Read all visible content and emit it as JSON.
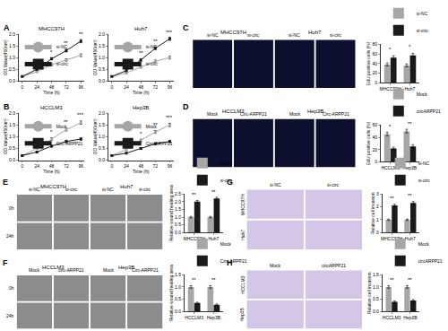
{
  "chart_data": [
    {
      "type": "line",
      "panel": "A",
      "title": "MHCC97H",
      "x_label": "Time (h)",
      "y_label": "OD Value(450nm)",
      "x": [
        0,
        24,
        48,
        72,
        96
      ],
      "xlim": [
        -6,
        102
      ],
      "xticks": [
        0,
        24,
        48,
        72,
        96
      ],
      "ylim": [
        0,
        2
      ],
      "yticks": [
        {
          "value": 0,
          "label": "0.0"
        },
        {
          "value": 0.5,
          "label": "0.5"
        },
        {
          "value": 1,
          "label": "1.0"
        },
        {
          "value": 1.5,
          "label": "1.5"
        },
        {
          "value": 2,
          "label": "2.0"
        }
      ],
      "series": [
        {
          "name": "si-NC",
          "color": "#a6a6a6",
          "marker": "circle",
          "values": [
            0.2,
            0.4,
            0.7,
            0.9,
            1.1
          ],
          "errors": [
            0.02,
            0.03,
            0.05,
            0.05,
            0.06
          ]
        },
        {
          "name": "si-circ",
          "color": "#1a1a1a",
          "marker": "square",
          "values": [
            0.2,
            0.5,
            0.95,
            1.3,
            1.7
          ],
          "errors": [
            0.02,
            0.04,
            0.05,
            0.06,
            0.07
          ]
        }
      ],
      "annotations": [
        {
          "x": 48,
          "y": 1.05,
          "text": "*"
        },
        {
          "x": 72,
          "y": 1.42,
          "text": "**"
        },
        {
          "x": 96,
          "y": 1.82,
          "text": "**"
        }
      ],
      "legend": "upper left",
      "grid": false
    },
    {
      "type": "line",
      "title": "Huh7",
      "x_label": "Time (h)",
      "y_label": "OD Value(450nm)",
      "x": [
        0,
        24,
        48,
        72,
        96
      ],
      "xlim": [
        -6,
        102
      ],
      "xticks": [
        0,
        24,
        48,
        72,
        96
      ],
      "ylim": [
        0,
        2
      ],
      "yticks": [
        {
          "value": 0,
          "label": "0.0"
        },
        {
          "value": 0.5,
          "label": "0.5"
        },
        {
          "value": 1,
          "label": "1.0"
        },
        {
          "value": 1.5,
          "label": "1.5"
        },
        {
          "value": 2,
          "label": "2.0"
        }
      ],
      "series": [
        {
          "name": "si-NC",
          "color": "#a6a6a6",
          "marker": "circle",
          "values": [
            0.2,
            0.35,
            0.6,
            0.85,
            1.0
          ],
          "errors": [
            0.02,
            0.03,
            0.04,
            0.05,
            0.06
          ]
        },
        {
          "name": "si-circ",
          "color": "#1a1a1a",
          "marker": "square",
          "values": [
            0.2,
            0.45,
            0.9,
            1.4,
            1.8
          ],
          "errors": [
            0.02,
            0.04,
            0.05,
            0.06,
            0.07
          ]
        }
      ],
      "annotations": [
        {
          "x": 48,
          "y": 1.0,
          "text": "**"
        },
        {
          "x": 72,
          "y": 1.52,
          "text": "**"
        },
        {
          "x": 96,
          "y": 1.9,
          "text": "***"
        }
      ],
      "legend": "upper left",
      "grid": false
    },
    {
      "type": "line",
      "panel": "B",
      "title": "HCCLM3",
      "x_label": "Time (h)",
      "y_label": "OD Value(450nm)",
      "x": [
        0,
        24,
        48,
        72,
        96
      ],
      "xlim": [
        -6,
        102
      ],
      "xticks": [
        0,
        24,
        48,
        72,
        96
      ],
      "ylim": [
        0,
        2
      ],
      "yticks": [
        {
          "value": 0,
          "label": "0.0"
        },
        {
          "value": 0.5,
          "label": "0.5"
        },
        {
          "value": 1,
          "label": "1.0"
        },
        {
          "value": 1.5,
          "label": "1.5"
        },
        {
          "value": 2,
          "label": "2.0"
        }
      ],
      "series": [
        {
          "name": "Mock",
          "color": "#a6a6a6",
          "marker": "circle",
          "values": [
            0.2,
            0.5,
            0.9,
            1.3,
            1.6
          ],
          "errors": [
            0.02,
            0.04,
            0.05,
            0.06,
            0.07
          ]
        },
        {
          "name": "Circ-ARPP21",
          "color": "#1a1a1a",
          "marker": "square",
          "values": [
            0.2,
            0.35,
            0.6,
            0.8,
            0.9
          ],
          "errors": [
            0.02,
            0.03,
            0.04,
            0.05,
            0.05
          ]
        }
      ],
      "annotations": [
        {
          "x": 48,
          "y": 1.0,
          "text": "*"
        },
        {
          "x": 72,
          "y": 1.42,
          "text": "**"
        },
        {
          "x": 96,
          "y": 1.72,
          "text": "***"
        }
      ],
      "legend": "upper left",
      "grid": false
    },
    {
      "type": "line",
      "title": "Hep3B",
      "x_label": "Time (h)",
      "y_label": "OD Value(450nm)",
      "x": [
        0,
        24,
        48,
        72,
        96
      ],
      "xlim": [
        -6,
        102
      ],
      "xticks": [
        0,
        24,
        48,
        72,
        96
      ],
      "ylim": [
        0,
        2
      ],
      "yticks": [
        {
          "value": 0,
          "label": "0.0"
        },
        {
          "value": 0.5,
          "label": "0.5"
        },
        {
          "value": 1,
          "label": "1.0"
        },
        {
          "value": 1.5,
          "label": "1.5"
        },
        {
          "value": 2,
          "label": "2.0"
        }
      ],
      "series": [
        {
          "name": "Mock",
          "color": "#a6a6a6",
          "marker": "circle",
          "values": [
            0.2,
            0.45,
            0.85,
            1.2,
            1.5
          ],
          "errors": [
            0.02,
            0.04,
            0.05,
            0.06,
            0.07
          ]
        },
        {
          "name": "Circ-ARPP21",
          "color": "#1a1a1a",
          "marker": "square",
          "values": [
            0.2,
            0.3,
            0.5,
            0.7,
            0.8
          ],
          "errors": [
            0.02,
            0.03,
            0.04,
            0.05,
            0.05
          ]
        }
      ],
      "annotations": [
        {
          "x": 48,
          "y": 0.95,
          "text": "*"
        },
        {
          "x": 72,
          "y": 1.32,
          "text": "**"
        },
        {
          "x": 96,
          "y": 1.62,
          "text": "***"
        }
      ],
      "legend": "upper left",
      "grid": false
    },
    {
      "type": "bar",
      "y_label": "EdU positive cells (%)",
      "categories": [
        "MHCC97H",
        "Huh7"
      ],
      "ylim": [
        0,
        80
      ],
      "yticks": [
        0,
        20,
        40,
        60,
        80
      ],
      "series": [
        {
          "name": "si-NC",
          "color": "#a6a6a6",
          "values": [
            38,
            36
          ],
          "errors": [
            3,
            3
          ]
        },
        {
          "name": "si-circ",
          "color": "#1a1a1a",
          "values": [
            52,
            57
          ],
          "errors": [
            4,
            4
          ]
        }
      ],
      "annotations": [
        {
          "category": "MHCC97H",
          "y": 60,
          "text": "*"
        },
        {
          "category": "Huh7",
          "y": 65,
          "text": "*"
        }
      ],
      "legend": "top",
      "grid": false
    },
    {
      "type": "bar",
      "y_label": "EdU positive cells (%)",
      "categories": [
        "HCCLM3",
        "Hep3B"
      ],
      "ylim": [
        0,
        60
      ],
      "yticks": [
        0,
        20,
        40,
        60
      ],
      "series": [
        {
          "name": "Mock",
          "color": "#a6a6a6",
          "values": [
            45,
            50
          ],
          "errors": [
            3,
            3
          ]
        },
        {
          "name": "circARPP21",
          "color": "#1a1a1a",
          "values": [
            22,
            25
          ],
          "errors": [
            2,
            3
          ]
        }
      ],
      "annotations": [
        {
          "category": "HCCLM3",
          "y": 50,
          "text": "*"
        },
        {
          "category": "Hep3B",
          "y": 55,
          "text": "**"
        }
      ],
      "legend": "top",
      "grid": false
    },
    {
      "type": "bar",
      "y_label": "Relative wound healing area",
      "categories": [
        "MHCC97H",
        "Huh7"
      ],
      "ylim": [
        0,
        2.5
      ],
      "yticks": [
        {
          "value": 0,
          "label": "0.0"
        },
        {
          "value": 0.5,
          "label": "0.5"
        },
        {
          "value": 1,
          "label": "1.0"
        },
        {
          "value": 1.5,
          "label": "1.5"
        },
        {
          "value": 2,
          "label": "2.0"
        },
        {
          "value": 2.5,
          "label": "2.5"
        }
      ],
      "series": [
        {
          "name": "si-NC",
          "color": "#a6a6a6",
          "values": [
            1,
            1
          ],
          "errors": [
            0.05,
            0.05
          ]
        },
        {
          "name": "si-circ",
          "color": "#1a1a1a",
          "values": [
            2.0,
            2.2
          ],
          "errors": [
            0.08,
            0.08
          ]
        }
      ],
      "annotations": [
        {
          "category": "MHCC97H",
          "y": 2.15,
          "text": "**"
        },
        {
          "category": "Huh7",
          "y": 2.32,
          "text": "**"
        }
      ],
      "legend": "top",
      "grid": false
    },
    {
      "type": "bar",
      "y_label": "Relative wound healing area",
      "categories": [
        "HCCLM3",
        "Hep3B"
      ],
      "ylim": [
        0,
        1.5
      ],
      "yticks": [
        {
          "value": 0,
          "label": "0.0"
        },
        {
          "value": 0.5,
          "label": "0.5"
        },
        {
          "value": 1,
          "label": "1.0"
        },
        {
          "value": 1.5,
          "label": "1.5"
        }
      ],
      "series": [
        {
          "name": "Mock",
          "color": "#a6a6a6",
          "values": [
            1,
            1
          ],
          "errors": [
            0.05,
            0.05
          ]
        },
        {
          "name": "Circ-ARPP21",
          "color": "#1a1a1a",
          "values": [
            0.35,
            0.28
          ],
          "errors": [
            0.03,
            0.03
          ]
        }
      ],
      "annotations": [
        {
          "category": "HCCLM3",
          "y": 1.1,
          "text": "**"
        },
        {
          "category": "Hep3B",
          "y": 1.1,
          "text": "**"
        }
      ],
      "legend": "top",
      "grid": false
    },
    {
      "type": "bar",
      "y_label": "Relative cell invasion",
      "categories": [
        "MHCC97H",
        "Huh7"
      ],
      "ylim": [
        0,
        3
      ],
      "yticks": [
        0,
        1,
        2,
        3
      ],
      "series": [
        {
          "name": "si-NC",
          "color": "#a6a6a6",
          "values": [
            1,
            1
          ],
          "errors": [
            0.05,
            0.05
          ]
        },
        {
          "name": "si-circ",
          "color": "#1a1a1a",
          "values": [
            2.1,
            2.3
          ],
          "errors": [
            0.1,
            0.1
          ]
        }
      ],
      "annotations": [
        {
          "category": "MHCC97H",
          "y": 2.3,
          "text": "**"
        },
        {
          "category": "Huh7",
          "y": 2.5,
          "text": "**"
        }
      ],
      "legend": "top",
      "grid": false
    },
    {
      "type": "bar",
      "y_label": "Relative cell invasion",
      "categories": [
        "HCCLM3",
        "Hep3B"
      ],
      "ylim": [
        0,
        1.5
      ],
      "yticks": [
        {
          "value": 0,
          "label": "0.0"
        },
        {
          "value": 0.5,
          "label": "0.5"
        },
        {
          "value": 1,
          "label": "1.0"
        },
        {
          "value": 1.5,
          "label": "1.5"
        }
      ],
      "series": [
        {
          "name": "Mock",
          "color": "#a6a6a6",
          "values": [
            1,
            1
          ],
          "errors": [
            0.05,
            0.05
          ]
        },
        {
          "name": "circARPP21",
          "color": "#1a1a1a",
          "values": [
            0.4,
            0.45
          ],
          "errors": [
            0.03,
            0.04
          ]
        }
      ],
      "annotations": [
        {
          "category": "HCCLM3",
          "y": 1.1,
          "text": "**"
        },
        {
          "category": "Hep3B",
          "y": 1.1,
          "text": "**"
        }
      ],
      "legend": "top",
      "grid": false
    }
  ],
  "image_panels": [
    {
      "panel": "C",
      "groups": [
        "MHCC97H",
        "Huh7"
      ],
      "columns": [
        "si-NC",
        "si-circ",
        "si-NC",
        "si-circ"
      ]
    },
    {
      "panel": "D",
      "groups": [
        "HCCLM3",
        "Hep3B"
      ],
      "columns": [
        "Mock",
        "Circ-ARPP21",
        "Mock",
        "Circ-ARPP21"
      ]
    },
    {
      "panel": "E",
      "groups": [
        "MHCC97H",
        "Huh7"
      ],
      "columns": [
        "si-NC",
        "si-circ",
        "si-NC",
        "si-circ"
      ],
      "rows": [
        "0h",
        "24h"
      ]
    },
    {
      "panel": "F",
      "groups": [
        "HCCLM3",
        "Hep3B"
      ],
      "columns": [
        "Mock",
        "circ-ARPP21",
        "Mock",
        "Circ-ARPP21"
      ],
      "rows": [
        "0h",
        "24h"
      ]
    },
    {
      "panel": "G",
      "columns": [
        "si-NC",
        "si-circ"
      ],
      "rows": [
        "MHCC97H",
        "Huh7"
      ]
    },
    {
      "panel": "H",
      "columns": [
        "Mock",
        "circARPP21"
      ],
      "rows": [
        "HCCLM3",
        "Hep3B"
      ]
    }
  ]
}
